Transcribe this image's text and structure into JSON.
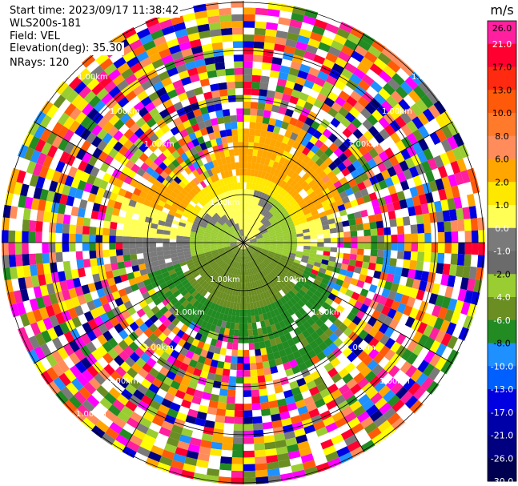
{
  "header": {
    "start_time": "Start time: 2023/09/17 11:38:42",
    "instrument": "WLS200s-181",
    "field": "Field: VEL",
    "elevation": "Elevation(deg): 35.30",
    "nrays": "NRays: 120"
  },
  "chart_data": {
    "type": "heatmap",
    "projection": "polar-ppi",
    "field": "VEL",
    "units": "m/s",
    "n_rays": 120,
    "range_ring_label": "1.00km",
    "range_ring_labels": [
      "1.00km",
      "1.00km",
      "1.00km",
      "1.00km",
      "1.00km",
      "1.00km",
      "1.00km",
      "1.00km",
      "1.00km",
      "1.00km",
      "1.00km",
      "1.00km",
      "1.00km",
      "1.00km",
      "1.00km",
      "1.00km"
    ],
    "colorbar": {
      "unit": "m/s",
      "ticks": [
        "26.0",
        "21.0",
        "17.0",
        "13.0",
        "10.0",
        "8.0",
        "6.0",
        "2.0",
        "1.0",
        "0.0",
        "-1.0",
        "-2.0",
        "-4.0",
        "-6.0",
        "-8.0",
        "-10.0",
        "-13.0",
        "-17.0",
        "-21.0",
        "-26.0",
        "-30.0"
      ],
      "colors": [
        "#ff1f9f",
        "#ff0030",
        "#ff2a10",
        "#ff5a0a",
        "#ff7a2a",
        "#ff8c5a",
        "#ffa600",
        "#ffe800",
        "#ffff55",
        "#7a7a7a",
        "#6b6b6b",
        "#9acd32",
        "#6b8e23",
        "#228b22",
        "#1e90ff",
        "#0060ff",
        "#0000e0",
        "#0000a8",
        "#000080",
        "#000050"
      ]
    },
    "grid": true
  }
}
